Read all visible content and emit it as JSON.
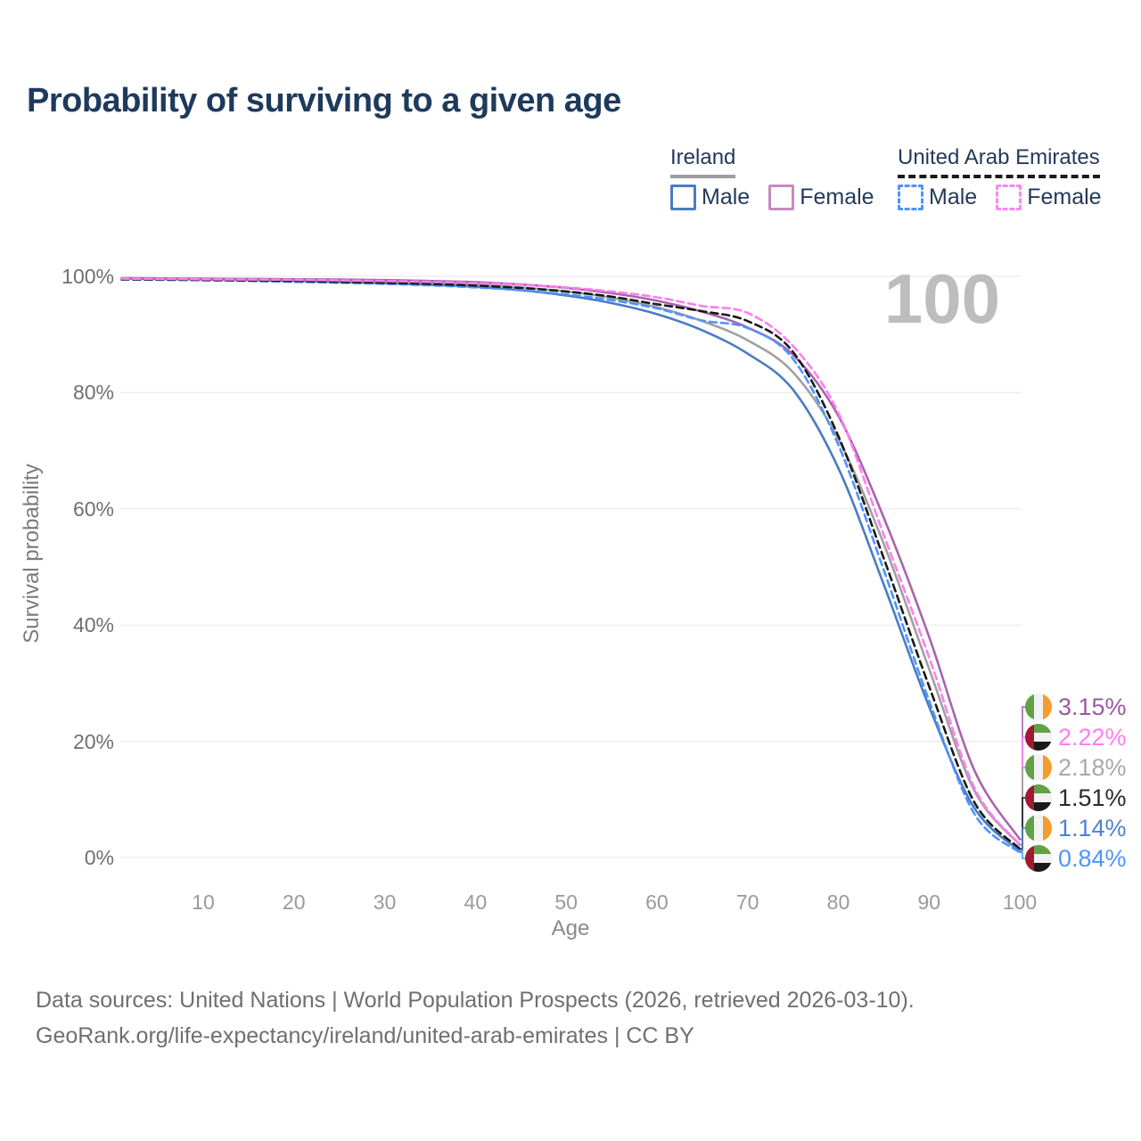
{
  "title": "Probability of surviving to a given age",
  "watermark_age": "100",
  "legend": {
    "groups": [
      {
        "id": "ireland",
        "label": "Ireland",
        "line_style": "solid",
        "underline_color": "#9e9e9e",
        "items": [
          {
            "label": "Male",
            "color": "#4a7cc2"
          },
          {
            "label": "Female",
            "color": "#c48bc0"
          }
        ]
      },
      {
        "id": "uae",
        "label": "United Arab Emirates",
        "line_style": "dashed",
        "underline_color": "#1a1a1a",
        "items": [
          {
            "label": "Male",
            "color": "#4d94ff"
          },
          {
            "label": "Female",
            "color": "#ff85f0"
          }
        ]
      }
    ]
  },
  "axes": {
    "y_label": "Survival probability",
    "x_label": "Age",
    "y_ticks": [
      "100%",
      "80%",
      "60%",
      "40%",
      "20%",
      "0%"
    ],
    "y_tick_values": [
      100,
      80,
      60,
      40,
      20,
      0
    ],
    "x_ticks": [
      10,
      20,
      30,
      40,
      50,
      60,
      70,
      80,
      90,
      100
    ],
    "x_range": [
      1,
      100
    ],
    "y_range": [
      0,
      100
    ],
    "grid": "horizontal-only"
  },
  "chart_data": {
    "type": "line",
    "title": "Probability of surviving to a given age",
    "xlabel": "Age",
    "ylabel": "Survival probability",
    "ylim": [
      0,
      100
    ],
    "xlim": [
      1,
      100
    ],
    "x": [
      1,
      5,
      10,
      15,
      20,
      25,
      30,
      35,
      40,
      45,
      50,
      55,
      60,
      65,
      70,
      75,
      80,
      85,
      90,
      95,
      100
    ],
    "series": [
      {
        "name": "Ireland Male",
        "country": "Ireland",
        "sex": "male",
        "style": "solid",
        "color": "#4a7cc2",
        "values": [
          99.6,
          99.55,
          99.45,
          99.35,
          99.2,
          99.0,
          98.8,
          98.55,
          98.2,
          97.6,
          96.7,
          95.4,
          93.5,
          90.7,
          86.7,
          80.5,
          67.0,
          47.0,
          26.0,
          8.5,
          1.14
        ]
      },
      {
        "name": "Ireland (both sexes)",
        "country": "Ireland",
        "sex": "both",
        "style": "solid",
        "color": "#a0a0a0",
        "values": [
          99.65,
          99.6,
          99.5,
          99.45,
          99.35,
          99.25,
          99.1,
          98.9,
          98.6,
          98.1,
          97.4,
          96.3,
          94.7,
          92.3,
          89.0,
          83.5,
          72.0,
          54.0,
          32.5,
          11.5,
          2.18
        ]
      },
      {
        "name": "Ireland Female",
        "country": "Ireland",
        "sex": "female",
        "style": "solid",
        "color": "#a864ad",
        "values": [
          99.7,
          99.65,
          99.6,
          99.55,
          99.5,
          99.45,
          99.35,
          99.2,
          99.0,
          98.6,
          98.0,
          97.1,
          95.8,
          93.9,
          91.2,
          86.5,
          76.0,
          58.5,
          38.0,
          15.0,
          3.15
        ]
      },
      {
        "name": "United Arab Emirates Male",
        "country": "United Arab Emirates",
        "sex": "male",
        "style": "dashed",
        "color": "#4d94ff",
        "values": [
          99.45,
          99.4,
          99.3,
          99.2,
          99.05,
          98.9,
          98.7,
          98.45,
          98.1,
          97.6,
          96.9,
          95.9,
          94.5,
          92.4,
          91.1,
          85.8,
          71.0,
          49.5,
          27.0,
          7.5,
          0.84
        ]
      },
      {
        "name": "United Arab Emirates (both sexes)",
        "country": "United Arab Emirates",
        "sex": "both",
        "style": "dashed",
        "color": "#1a1a1a",
        "values": [
          99.5,
          99.45,
          99.4,
          99.3,
          99.2,
          99.05,
          98.9,
          98.7,
          98.4,
          98.0,
          97.4,
          96.5,
          95.2,
          94.0,
          92.3,
          87.0,
          72.5,
          51.5,
          29.5,
          9.5,
          1.51
        ]
      },
      {
        "name": "United Arab Emirates Female",
        "country": "United Arab Emirates",
        "sex": "female",
        "style": "dashed",
        "color": "#ff7df0",
        "values": [
          99.6,
          99.55,
          99.5,
          99.45,
          99.4,
          99.3,
          99.2,
          99.05,
          98.85,
          98.55,
          98.1,
          97.4,
          96.4,
          94.9,
          93.7,
          88.0,
          76.5,
          55.5,
          34.5,
          12.0,
          2.22
        ]
      }
    ],
    "end_labels": [
      {
        "series": "Ireland Female",
        "series_index": 2,
        "text": "3.15%",
        "color": "#9c59a0",
        "flag": "ireland"
      },
      {
        "series": "United Arab Emirates Female",
        "series_index": 5,
        "text": "2.22%",
        "color": "#ff7df0",
        "flag": "uae"
      },
      {
        "series": "Ireland (both sexes)",
        "series_index": 1,
        "text": "2.18%",
        "color": "#a9a9a9",
        "flag": "ireland"
      },
      {
        "series": "United Arab Emirates (both sexes)",
        "series_index": 4,
        "text": "1.51%",
        "color": "#2a2a2a",
        "flag": "uae"
      },
      {
        "series": "Ireland Male",
        "series_index": 0,
        "text": "1.14%",
        "color": "#4f80d4",
        "flag": "ireland"
      },
      {
        "series": "United Arab Emirates Male",
        "series_index": 3,
        "text": "0.84%",
        "color": "#4d94ff",
        "flag": "uae"
      }
    ]
  },
  "footer": {
    "line1": "Data sources: United Nations | World Population Prospects (2026, retrieved 2026-03-10).",
    "line2": "GeoRank.org/life-expectancy/ireland/united-arab-emirates | CC BY"
  },
  "colors": {
    "title": "#1e3a5c",
    "grid": "#ececec",
    "watermark": "#bdbdbd",
    "axis_text": "#6f6f6f",
    "background": "#ffffff"
  }
}
